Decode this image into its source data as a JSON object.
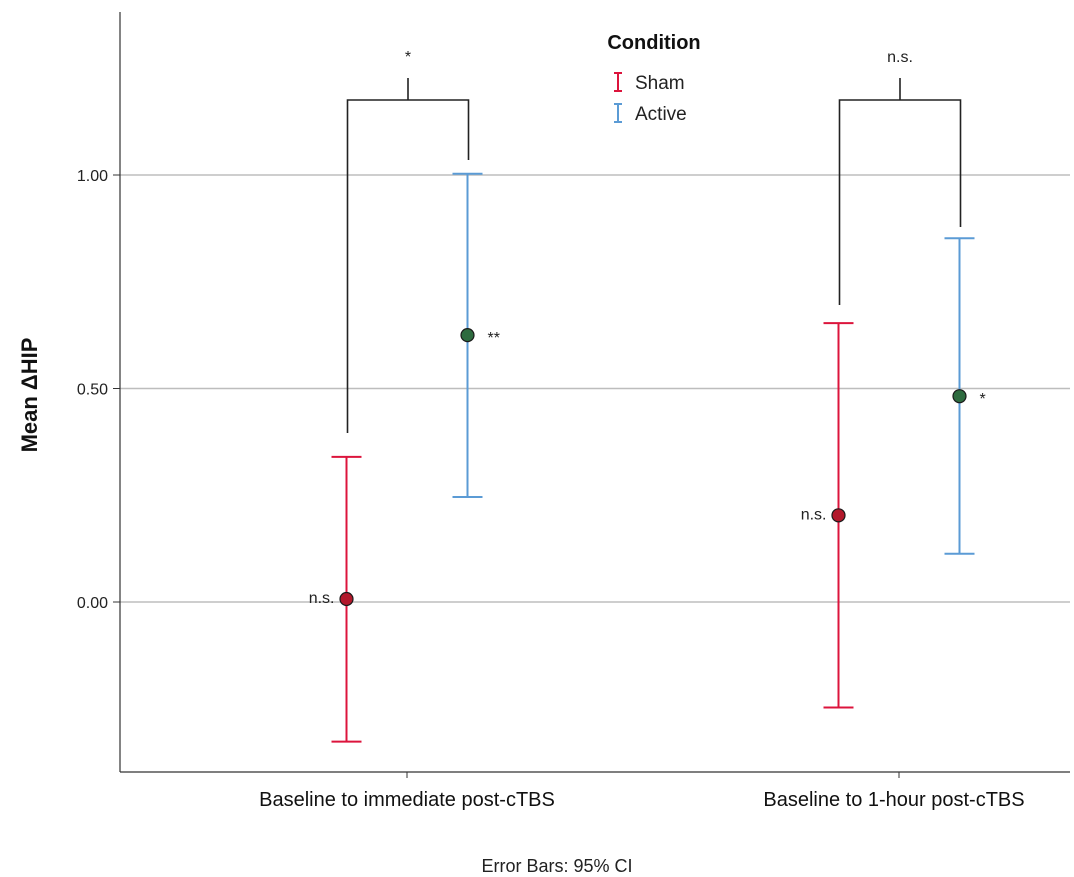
{
  "chart_data": {
    "type": "errorbar",
    "ylabel": "Mean ΔHIP",
    "footnote": "Error Bars: 95% CI",
    "ylim": [
      -0.4,
      1.4
    ],
    "yticks": [
      0.0,
      0.5,
      1.0
    ],
    "ytick_labels": [
      "0.00",
      "0.50",
      "1.00"
    ],
    "grid": "horizontal",
    "legend": {
      "title": "Condition",
      "position": "top-center",
      "items": [
        {
          "label": "Sham",
          "color": "#dc143c"
        },
        {
          "label": "Active",
          "color": "#5b9bd5"
        }
      ]
    },
    "categories": [
      "Baseline to immediate post-cTBS",
      "Baseline to 1-hour post-cTBS"
    ],
    "series": [
      {
        "name": "Sham",
        "color": "#dc143c",
        "marker_color": "#b2182b",
        "means": [
          0.007,
          0.203
        ],
        "ci_low": [
          -0.327,
          -0.247
        ],
        "ci_high": [
          0.34,
          0.653
        ],
        "annotations": [
          "n.s.",
          "n.s."
        ]
      },
      {
        "name": "Active",
        "color": "#5b9bd5",
        "marker_color": "#2e6b3f",
        "means": [
          0.625,
          0.482
        ],
        "ci_low": [
          0.246,
          0.113
        ],
        "ci_high": [
          1.003,
          0.852
        ],
        "annotations": [
          "**",
          "*"
        ]
      }
    ],
    "comparisons": [
      {
        "category": "Baseline to immediate post-cTBS",
        "label": "*"
      },
      {
        "category": "Baseline to 1-hour post-cTBS",
        "label": "n.s."
      }
    ]
  }
}
